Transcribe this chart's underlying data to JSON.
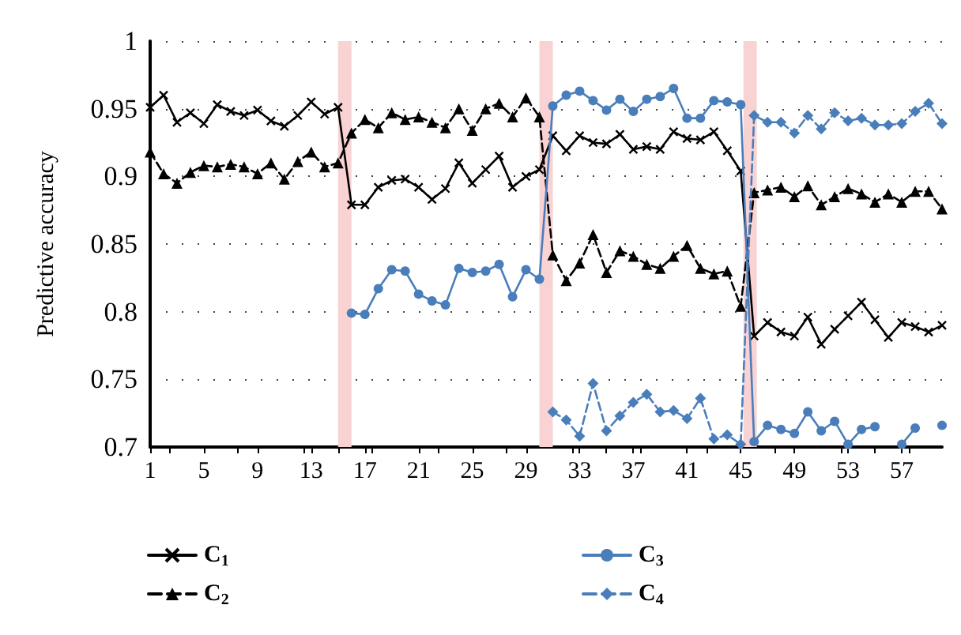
{
  "chart_data": {
    "type": "line",
    "ylabel": "Predictive accuracy",
    "x": [
      1,
      2,
      3,
      4,
      5,
      6,
      7,
      8,
      9,
      10,
      11,
      12,
      13,
      14,
      15,
      16,
      17,
      18,
      19,
      20,
      21,
      22,
      23,
      24,
      25,
      26,
      27,
      28,
      29,
      30,
      31,
      32,
      33,
      34,
      35,
      36,
      37,
      38,
      39,
      40,
      41,
      42,
      43,
      44,
      45,
      46,
      47,
      48,
      49,
      50,
      51,
      52,
      53,
      54,
      55,
      56,
      57,
      58,
      59,
      60
    ],
    "xlim": [
      1,
      60
    ],
    "xticks": [
      1,
      5,
      9,
      13,
      17,
      21,
      25,
      29,
      33,
      37,
      41,
      45,
      49,
      53,
      57
    ],
    "ylim": [
      0.7,
      1
    ],
    "yticks": [
      0.7,
      0.75,
      0.8,
      0.85,
      0.9,
      0.95,
      1
    ],
    "grid": "y",
    "legend": "bottom",
    "series": [
      {
        "name": "C$_{1}$",
        "color": "#000000",
        "marker": "cross",
        "line_style": "solid",
        "values": [
          0.951,
          0.96,
          0.94,
          0.947,
          0.939,
          0.953,
          0.948,
          0.945,
          0.949,
          0.941,
          0.937,
          0.945,
          0.955,
          0.946,
          0.951,
          0.879,
          0.879,
          0.892,
          0.897,
          0.898,
          0.892,
          0.883,
          0.891,
          0.91,
          0.895,
          0.905,
          0.915,
          0.892,
          0.9,
          0.905,
          0.93,
          0.919,
          0.93,
          0.925,
          0.924,
          0.931,
          0.92,
          0.922,
          0.92,
          0.933,
          0.928,
          0.927,
          0.933,
          0.919,
          0.904,
          0.782,
          0.792,
          0.785,
          0.782,
          0.796,
          0.776,
          0.787,
          0.797,
          0.807,
          0.794,
          0.781,
          0.792,
          0.789,
          0.785,
          0.79
        ]
      },
      {
        "name": "C$_{2}$",
        "color": "#000000",
        "marker": "triangle",
        "line_style": "dashed",
        "values": [
          0.918,
          0.902,
          0.895,
          0.903,
          0.908,
          0.907,
          0.909,
          0.907,
          0.902,
          0.91,
          0.898,
          0.911,
          0.918,
          0.907,
          0.91,
          0.932,
          0.942,
          0.936,
          0.947,
          0.942,
          0.944,
          0.94,
          0.936,
          0.95,
          0.934,
          0.95,
          0.954,
          0.944,
          0.958,
          0.944,
          0.842,
          0.823,
          0.836,
          0.857,
          0.829,
          0.845,
          0.841,
          0.835,
          0.832,
          0.841,
          0.849,
          0.832,
          0.828,
          0.83,
          0.804,
          0.888,
          0.89,
          0.892,
          0.885,
          0.893,
          0.879,
          0.885,
          0.891,
          0.887,
          0.881,
          0.887,
          0.881,
          0.889,
          0.889,
          0.876
        ]
      },
      {
        "name": "C$_{3}$",
        "color": "#4a7ebb",
        "marker": "circle",
        "line_style": "solid",
        "values": [
          null,
          null,
          null,
          null,
          null,
          null,
          null,
          null,
          null,
          null,
          null,
          null,
          null,
          null,
          null,
          0.799,
          0.798,
          0.817,
          0.831,
          0.83,
          0.813,
          0.808,
          0.805,
          0.832,
          0.829,
          0.83,
          0.835,
          0.811,
          0.831,
          0.824,
          0.952,
          0.96,
          0.963,
          0.956,
          0.949,
          0.957,
          0.948,
          0.957,
          0.959,
          0.965,
          0.943,
          0.943,
          0.956,
          0.955,
          0.953,
          0.704,
          0.716,
          0.713,
          0.71,
          0.726,
          0.712,
          0.719,
          0.702,
          0.713,
          0.715,
          null,
          0.702,
          0.714,
          null,
          0.716
        ]
      },
      {
        "name": "C$_{4}$",
        "color": "#4a7ebb",
        "marker": "diamond",
        "line_style": "dashed",
        "values": [
          null,
          null,
          null,
          null,
          null,
          null,
          null,
          null,
          null,
          null,
          null,
          null,
          null,
          null,
          null,
          null,
          null,
          null,
          null,
          null,
          null,
          null,
          null,
          null,
          null,
          null,
          null,
          null,
          null,
          null,
          0.726,
          0.72,
          0.708,
          0.747,
          0.712,
          0.723,
          0.733,
          0.739,
          0.726,
          0.727,
          0.721,
          0.736,
          0.706,
          0.709,
          0.702,
          0.945,
          0.94,
          0.94,
          0.932,
          0.945,
          0.935,
          0.947,
          0.941,
          0.943,
          0.938,
          0.938,
          0.939,
          0.948,
          0.954,
          0.939
        ]
      }
    ],
    "bands": [
      {
        "axis": "x",
        "from": 15,
        "to": 16,
        "color": "#f9d3d3"
      },
      {
        "axis": "x",
        "from": 30,
        "to": 31,
        "color": "#f9d3d3"
      },
      {
        "axis": "x",
        "from": 45.2,
        "to": 46.2,
        "color": "#f9d3d3"
      }
    ]
  }
}
